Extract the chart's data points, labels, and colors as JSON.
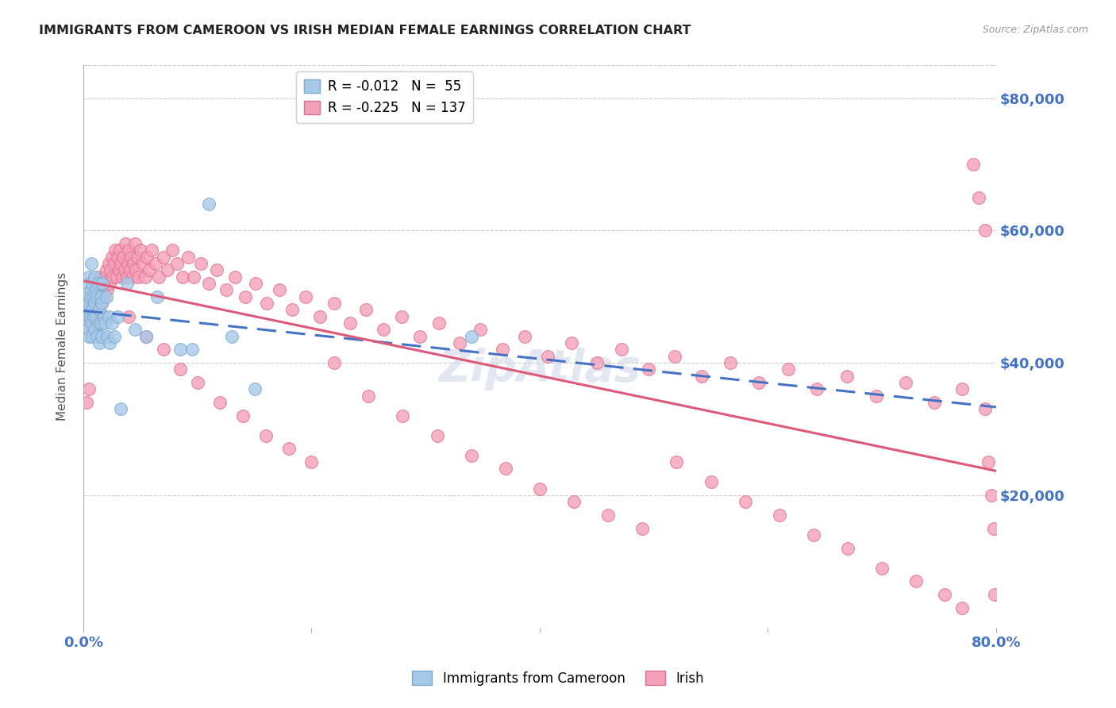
{
  "title": "IMMIGRANTS FROM CAMEROON VS IRISH MEDIAN FEMALE EARNINGS CORRELATION CHART",
  "source": "Source: ZipAtlas.com",
  "ylabel": "Median Female Earnings",
  "xlim": [
    0.0,
    0.8
  ],
  "ylim": [
    0,
    85000
  ],
  "yticks": [
    0,
    20000,
    40000,
    60000,
    80000
  ],
  "ytick_labels": [
    "",
    "$20,000",
    "$40,000",
    "$60,000",
    "$80,000"
  ],
  "xticks": [
    0.0,
    0.2,
    0.4,
    0.6,
    0.8
  ],
  "xtick_labels": [
    "0.0%",
    "",
    "",
    "",
    "80.0%"
  ],
  "blue_color": "#a8c8e8",
  "blue_edge": "#7aaad0",
  "pink_color": "#f4a0b8",
  "pink_edge": "#e07090",
  "blue_line_color": "#4472c4",
  "pink_line_color": "#e05878",
  "axis_label_color": "#4472c4",
  "tick_label_color": "#4472c4",
  "title_color": "#222222",
  "grid_color": "#cccccc",
  "watermark": "ZipAtlas",
  "legend1_label1": "R = -0.012   N =  55",
  "legend1_label2": "R = -0.225   N = 137",
  "legend2_label1": "Immigrants from Cameroon",
  "legend2_label2": "Irish",
  "blue_scatter_x": [
    0.002,
    0.003,
    0.003,
    0.004,
    0.004,
    0.004,
    0.005,
    0.005,
    0.005,
    0.006,
    0.006,
    0.007,
    0.007,
    0.007,
    0.008,
    0.008,
    0.008,
    0.009,
    0.009,
    0.01,
    0.01,
    0.01,
    0.011,
    0.011,
    0.012,
    0.012,
    0.013,
    0.013,
    0.014,
    0.014,
    0.015,
    0.015,
    0.016,
    0.016,
    0.017,
    0.018,
    0.019,
    0.02,
    0.021,
    0.022,
    0.023,
    0.025,
    0.027,
    0.03,
    0.033,
    0.038,
    0.045,
    0.055,
    0.065,
    0.085,
    0.095,
    0.11,
    0.13,
    0.15,
    0.34
  ],
  "blue_scatter_y": [
    46000,
    48000,
    50000,
    47000,
    52000,
    45000,
    49000,
    53000,
    44000,
    50000,
    47000,
    51000,
    46000,
    55000,
    48000,
    52000,
    44000,
    50000,
    47000,
    49000,
    53000,
    45000,
    51000,
    47000,
    50000,
    44000,
    52000,
    46000,
    48000,
    43000,
    50000,
    46000,
    49000,
    44000,
    52000,
    47000,
    46000,
    50000,
    44000,
    47000,
    43000,
    46000,
    44000,
    47000,
    33000,
    52000,
    45000,
    44000,
    50000,
    42000,
    42000,
    64000,
    44000,
    36000,
    44000
  ],
  "pink_scatter_x": [
    0.003,
    0.005,
    0.006,
    0.007,
    0.008,
    0.009,
    0.01,
    0.011,
    0.012,
    0.013,
    0.014,
    0.015,
    0.016,
    0.017,
    0.018,
    0.019,
    0.02,
    0.021,
    0.022,
    0.023,
    0.024,
    0.025,
    0.026,
    0.027,
    0.028,
    0.029,
    0.03,
    0.031,
    0.032,
    0.033,
    0.034,
    0.035,
    0.036,
    0.037,
    0.038,
    0.039,
    0.04,
    0.041,
    0.042,
    0.043,
    0.044,
    0.045,
    0.046,
    0.047,
    0.048,
    0.05,
    0.052,
    0.054,
    0.056,
    0.058,
    0.06,
    0.063,
    0.066,
    0.07,
    0.074,
    0.078,
    0.082,
    0.087,
    0.092,
    0.097,
    0.103,
    0.11,
    0.117,
    0.125,
    0.133,
    0.142,
    0.151,
    0.161,
    0.172,
    0.183,
    0.195,
    0.207,
    0.22,
    0.234,
    0.248,
    0.263,
    0.279,
    0.295,
    0.312,
    0.33,
    0.348,
    0.367,
    0.387,
    0.407,
    0.428,
    0.45,
    0.472,
    0.495,
    0.518,
    0.542,
    0.567,
    0.592,
    0.618,
    0.643,
    0.669,
    0.695,
    0.721,
    0.746,
    0.77,
    0.79,
    0.04,
    0.055,
    0.07,
    0.085,
    0.1,
    0.12,
    0.14,
    0.16,
    0.18,
    0.2,
    0.22,
    0.25,
    0.28,
    0.31,
    0.34,
    0.37,
    0.4,
    0.43,
    0.46,
    0.49,
    0.52,
    0.55,
    0.58,
    0.61,
    0.64,
    0.67,
    0.7,
    0.73,
    0.755,
    0.77,
    0.78,
    0.785,
    0.79,
    0.793,
    0.796,
    0.798,
    0.799
  ],
  "pink_scatter_y": [
    34000,
    36000,
    47000,
    49000,
    48000,
    50000,
    51000,
    49000,
    52000,
    50000,
    53000,
    51000,
    49000,
    52000,
    50000,
    53000,
    54000,
    51000,
    55000,
    52000,
    54000,
    56000,
    53000,
    55000,
    57000,
    53000,
    56000,
    54000,
    57000,
    55000,
    53000,
    56000,
    54000,
    58000,
    53000,
    55000,
    57000,
    54000,
    56000,
    53000,
    55000,
    58000,
    54000,
    56000,
    53000,
    57000,
    55000,
    53000,
    56000,
    54000,
    57000,
    55000,
    53000,
    56000,
    54000,
    57000,
    55000,
    53000,
    56000,
    53000,
    55000,
    52000,
    54000,
    51000,
    53000,
    50000,
    52000,
    49000,
    51000,
    48000,
    50000,
    47000,
    49000,
    46000,
    48000,
    45000,
    47000,
    44000,
    46000,
    43000,
    45000,
    42000,
    44000,
    41000,
    43000,
    40000,
    42000,
    39000,
    41000,
    38000,
    40000,
    37000,
    39000,
    36000,
    38000,
    35000,
    37000,
    34000,
    36000,
    33000,
    47000,
    44000,
    42000,
    39000,
    37000,
    34000,
    32000,
    29000,
    27000,
    25000,
    40000,
    35000,
    32000,
    29000,
    26000,
    24000,
    21000,
    19000,
    17000,
    15000,
    25000,
    22000,
    19000,
    17000,
    14000,
    12000,
    9000,
    7000,
    5000,
    3000,
    70000,
    65000,
    60000,
    25000,
    20000,
    15000,
    5000
  ]
}
